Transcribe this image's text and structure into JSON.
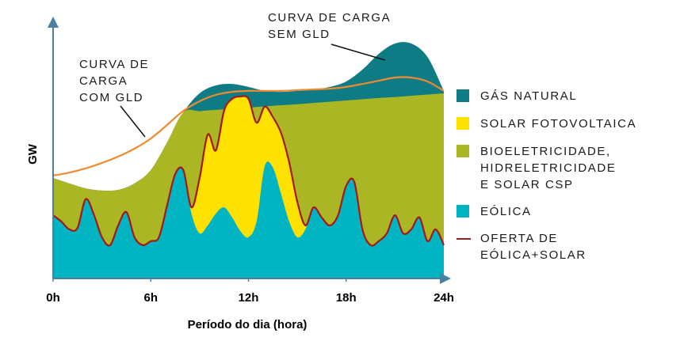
{
  "chart_data": {
    "type": "area",
    "xlabel": "Período do dia (hora)",
    "ylabel": "GW",
    "xlim": [
      0,
      24
    ],
    "xticks": [
      {
        "value": 0,
        "label": "0h"
      },
      {
        "value": 6,
        "label": "6h"
      },
      {
        "value": 12,
        "label": "12h"
      },
      {
        "value": 18,
        "label": "18h"
      },
      {
        "value": 24,
        "label": "24h"
      }
    ],
    "ylim": [
      0,
      100
    ],
    "annotations": [
      {
        "text": "CURVA DE CARGA\nSEM GLD"
      },
      {
        "text": "CURVA DE\nCARGA\nCOM GLD"
      }
    ],
    "series": [
      {
        "name": "GÁS NATURAL",
        "color": "#0f7c85",
        "style": "area",
        "x": [
          0,
          1,
          2,
          3,
          4,
          5,
          6,
          7,
          8,
          9,
          10,
          11,
          12,
          13,
          14,
          15,
          16,
          17,
          18,
          19,
          20,
          21,
          22,
          23,
          24
        ],
        "values": [
          40.7,
          38.5,
          36.5,
          35.6,
          35.9,
          38.5,
          43.9,
          55.1,
          67.3,
          75,
          78.2,
          78.8,
          77.6,
          76,
          75.6,
          76,
          76.6,
          77.6,
          79.8,
          84.6,
          91,
          95.2,
          95.2,
          89.7,
          76
        ]
      },
      {
        "name": "SOLAR FOTOVOLTAICA",
        "color": "#ffe100",
        "style": "area",
        "x": [
          0,
          0.5,
          1,
          1.5,
          2,
          2.5,
          3,
          3.5,
          4,
          4.5,
          5,
          5.5,
          6,
          6.5,
          7,
          7.5,
          8,
          8.5,
          9,
          9.5,
          10,
          10.5,
          11,
          11.5,
          12,
          12.5,
          13,
          13.5,
          14,
          14.5,
          15,
          15.5,
          16,
          16.5,
          17,
          17.5,
          18,
          18.5,
          19,
          19.5,
          20,
          20.5,
          21,
          21.5,
          22,
          22.5,
          23,
          23.5,
          24
        ],
        "values": [
          25.6,
          23.1,
          19.9,
          20.5,
          32.1,
          26,
          16.7,
          13.5,
          21.5,
          26.9,
          16.7,
          13.5,
          15.1,
          16.7,
          29.5,
          42.3,
          43.9,
          28.8,
          40.7,
          58.3,
          51.9,
          67.9,
          72.8,
          73.7,
          72.8,
          63.1,
          69.6,
          65.4,
          59,
          47.1,
          31.1,
          21.5,
          28.8,
          24.7,
          21.5,
          25.6,
          37.5,
          39.1,
          19.9,
          13.5,
          15.1,
          18.3,
          25.6,
          18.3,
          19.9,
          24.7,
          15.1,
          19.9,
          13.5
        ]
      },
      {
        "name": "BIOELETRICIDADE,\nHIDRELETRICIDADE\nE SOLAR CSP",
        "color": "#aab623",
        "style": "area",
        "x": [
          0,
          1,
          2,
          3,
          4,
          5,
          6,
          7,
          8,
          9,
          10,
          11,
          12,
          13,
          14,
          15,
          16,
          17,
          18,
          19,
          20,
          21,
          22,
          23,
          24
        ],
        "values": [
          40.7,
          38.5,
          36.5,
          35.6,
          35.9,
          38.5,
          43.9,
          55.1,
          67.3,
          67.8,
          68.3,
          68.7,
          69.2,
          69.7,
          70.2,
          70.6,
          71.1,
          71.6,
          72.1,
          72.6,
          73.1,
          73.5,
          74,
          74.5,
          75
        ]
      },
      {
        "name": "EÓLICA",
        "color": "#00b4c1",
        "style": "area",
        "x": [
          0,
          0.5,
          1,
          1.5,
          2,
          2.5,
          3,
          3.5,
          4,
          4.5,
          5,
          5.5,
          6,
          6.5,
          7,
          7.5,
          8,
          8.5,
          9,
          9.5,
          10,
          10.5,
          11,
          11.5,
          12,
          12.5,
          13,
          13.5,
          14,
          14.5,
          15,
          15.5,
          16,
          16.5,
          17,
          17.5,
          18,
          18.5,
          19,
          19.5,
          20,
          20.5,
          21,
          21.5,
          22,
          22.5,
          23,
          23.5,
          24
        ],
        "values": [
          25.6,
          23.1,
          19.9,
          20.5,
          32.1,
          26,
          16.7,
          13.5,
          21.5,
          26.9,
          16.7,
          13.5,
          15.1,
          16.7,
          29.5,
          42.3,
          43.9,
          26.3,
          18.3,
          21.5,
          26.3,
          28.8,
          24.7,
          19.2,
          16.7,
          23.1,
          45.5,
          44.9,
          34.3,
          23.1,
          16.7,
          19.9,
          28.8,
          24.7,
          21.5,
          25.6,
          37.5,
          39.1,
          19.9,
          13.5,
          15.1,
          18.3,
          25.6,
          18.3,
          19.9,
          24.7,
          15.1,
          19.9,
          13.5
        ]
      },
      {
        "name": "OFERTA DE\nEÓLICA+SOLAR",
        "color": "#a3191c",
        "style": "line",
        "x": [
          0,
          0.5,
          1,
          1.5,
          2,
          2.5,
          3,
          3.5,
          4,
          4.5,
          5,
          5.5,
          6,
          6.5,
          7,
          7.5,
          8,
          8.5,
          9,
          9.5,
          10,
          10.5,
          11,
          11.5,
          12,
          12.5,
          13,
          13.5,
          14,
          14.5,
          15,
          15.5,
          16,
          16.5,
          17,
          17.5,
          18,
          18.5,
          19,
          19.5,
          20,
          20.5,
          21,
          21.5,
          22,
          22.5,
          23,
          23.5,
          24
        ],
        "values": [
          25.6,
          23.1,
          19.9,
          20.5,
          32.1,
          26,
          16.7,
          13.5,
          21.5,
          26.9,
          16.7,
          13.5,
          15.1,
          16.7,
          29.5,
          42.3,
          43.9,
          28.8,
          40.7,
          58.3,
          51.9,
          67.9,
          72.8,
          73.7,
          72.8,
          63.1,
          69.6,
          65.4,
          59,
          47.1,
          31.1,
          21.5,
          28.8,
          24.7,
          21.5,
          25.6,
          37.5,
          39.1,
          19.9,
          13.5,
          15.1,
          18.3,
          25.6,
          18.3,
          19.9,
          24.7,
          15.1,
          19.9,
          13.5
        ]
      },
      {
        "color": "#f08a2e",
        "style": "line",
        "x": [
          0,
          1,
          2,
          3,
          4,
          5,
          6,
          7,
          8,
          9,
          10,
          11,
          12,
          13,
          14,
          15,
          16,
          17,
          18,
          19,
          20,
          21,
          22,
          23,
          24
        ],
        "values": [
          41.7,
          42.9,
          44.6,
          46.8,
          49.4,
          52.6,
          56.7,
          62.2,
          67.9,
          71.8,
          74.4,
          75.6,
          76,
          76,
          76,
          76.3,
          76.6,
          76.9,
          77.6,
          78.8,
          80.1,
          81.4,
          81.4,
          79.8,
          76
        ]
      }
    ]
  }
}
